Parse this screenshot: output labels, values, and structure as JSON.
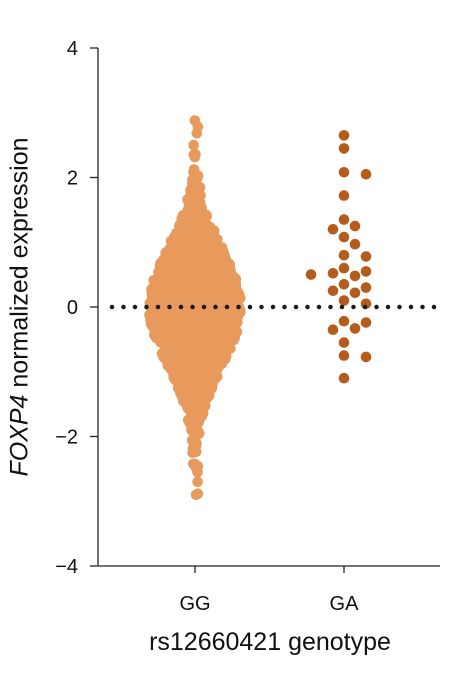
{
  "chart_data": {
    "type": "scatter",
    "subtype": "beeswarm",
    "title": "",
    "ylabel_gene": "FOXP4",
    "ylabel_rest": " normalized expression",
    "xlabel": "rs12660421 genotype",
    "categories": [
      "GG",
      "GA"
    ],
    "ylim": [
      -4,
      4
    ],
    "yticks": [
      -4,
      -2,
      0,
      2,
      4
    ],
    "ytick_labels": [
      "−4",
      "−2",
      "0",
      "2",
      "4"
    ],
    "reference_line": {
      "y": 0,
      "style": "dotted",
      "color": "#1a1a1a"
    },
    "grid": false,
    "legend": "none",
    "series": [
      {
        "category": "GG",
        "color": "#e89a5c",
        "distribution": {
          "type": "normal",
          "mean": 0,
          "sd": 0.85,
          "count": 1500,
          "min": -2.9,
          "max": 2.9
        },
        "values": [
          2.88,
          2.5,
          2.35,
          -2.9,
          -2.7,
          -2.55
        ]
      },
      {
        "category": "GA",
        "color": "#b45c1c",
        "values": [
          2.65,
          2.45,
          2.08,
          2.05,
          1.72,
          1.35,
          1.25,
          1.2,
          1.08,
          0.97,
          0.8,
          0.78,
          0.6,
          0.55,
          0.52,
          0.5,
          0.48,
          0.35,
          0.3,
          0.25,
          0.22,
          0.1,
          0.05,
          -0.22,
          -0.24,
          -0.33,
          -0.35,
          -0.55,
          -0.75,
          -0.77,
          -1.1
        ]
      }
    ]
  }
}
